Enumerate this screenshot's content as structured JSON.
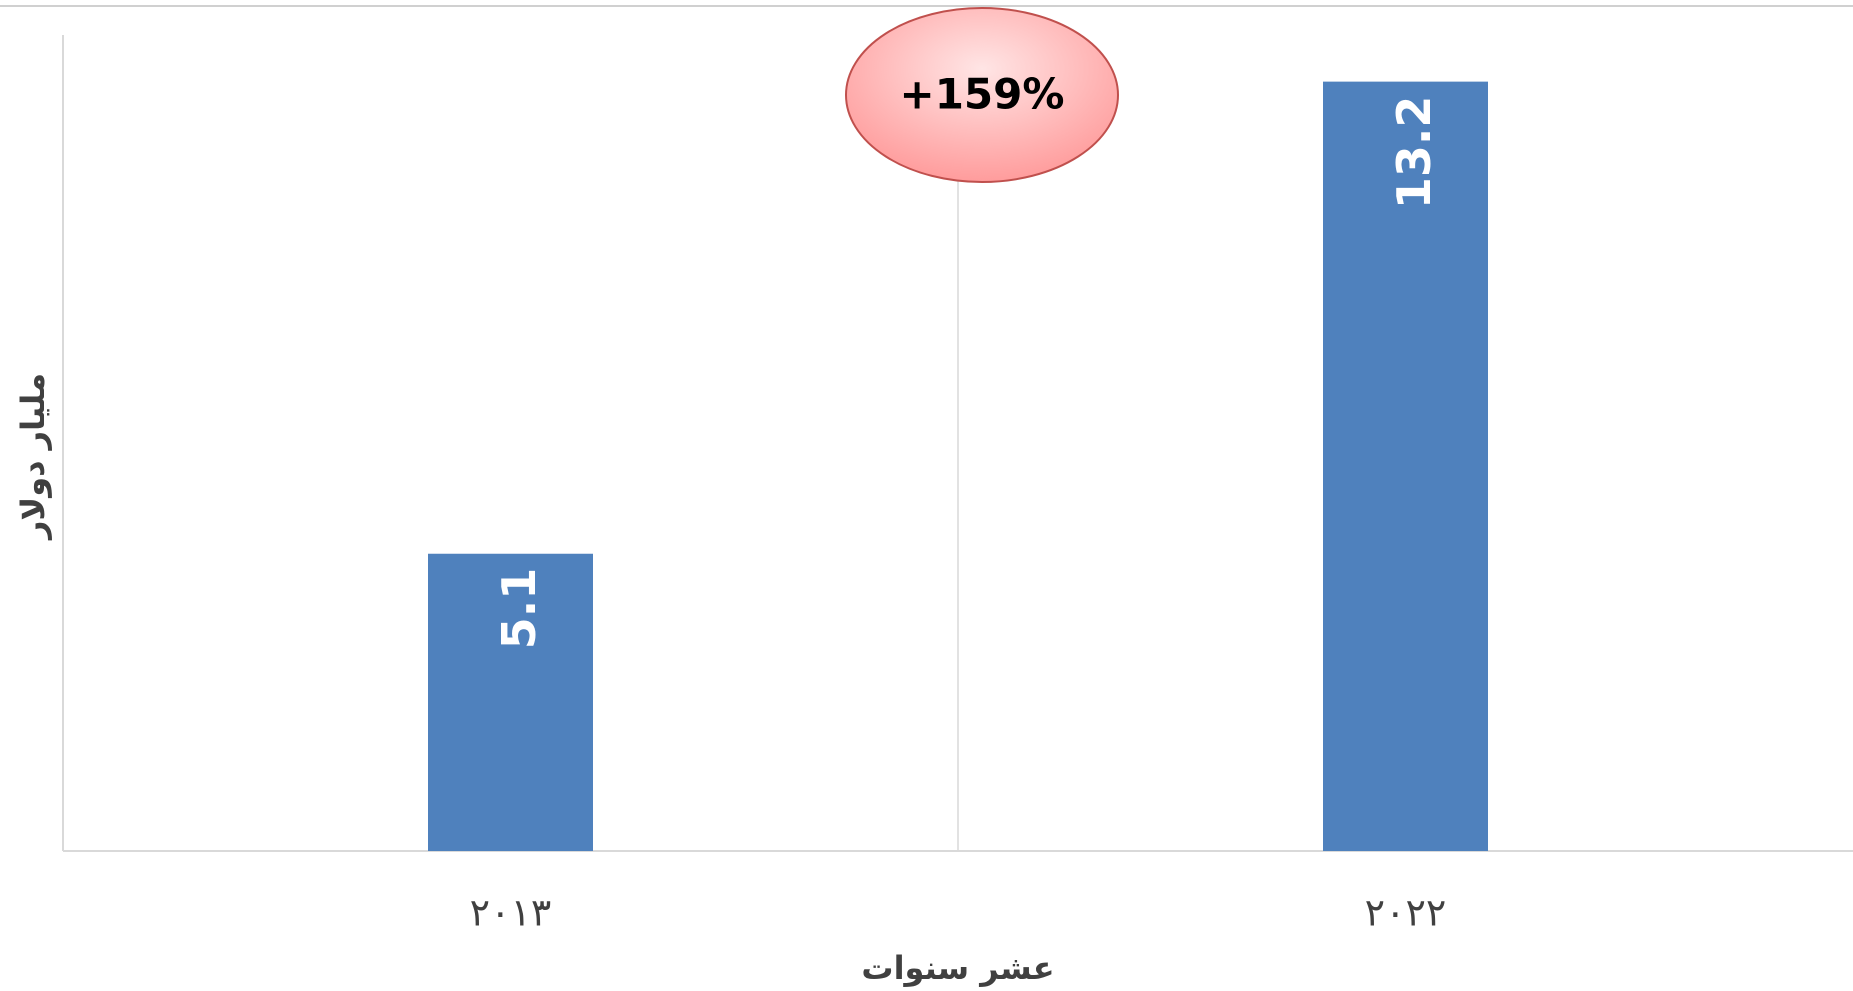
{
  "chart_data": {
    "type": "bar",
    "categories": [
      "٢٠١٣",
      "٢٠٢٢"
    ],
    "values": [
      5.1,
      13.2
    ],
    "color": "#4f81bd",
    "ylim": [
      0,
      14
    ],
    "y_label": "مليار دولار",
    "x_label": "عشر سنوات",
    "annotation": "+159%",
    "grid": true
  }
}
